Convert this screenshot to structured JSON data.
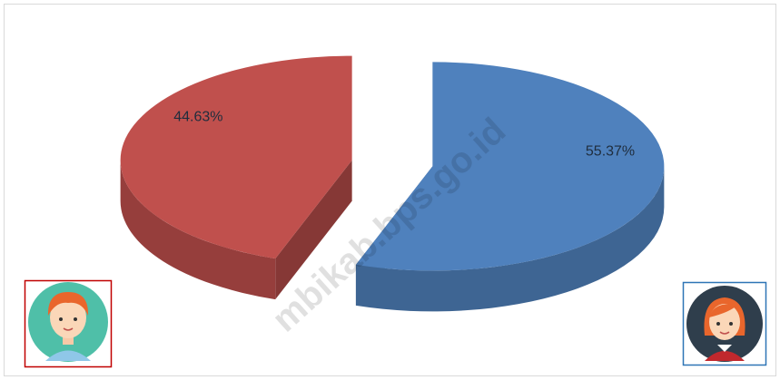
{
  "chart_data": {
    "type": "pie3d",
    "values": [
      44.63,
      55.37
    ],
    "value_labels": [
      "44.63%",
      "55.37%"
    ],
    "colors": [
      "#c0504d",
      "#4f81bd"
    ]
  },
  "watermark": "mbikab.bps.go.id"
}
